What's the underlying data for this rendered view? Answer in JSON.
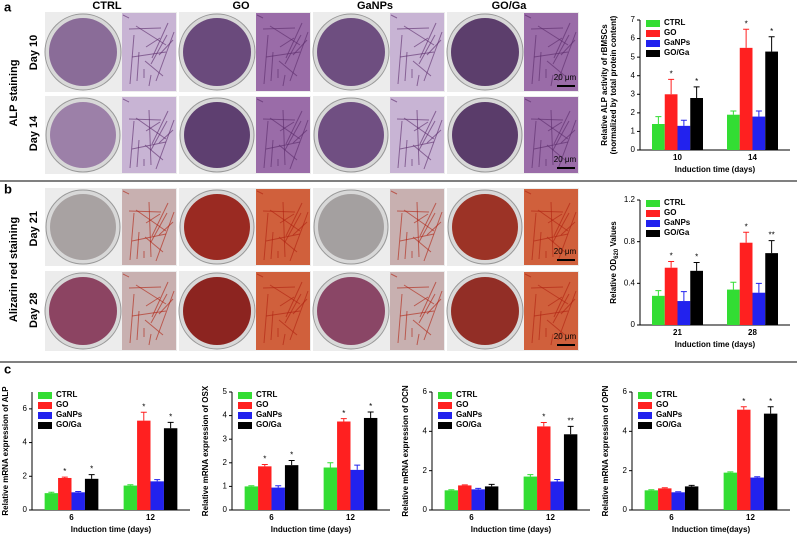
{
  "figure": {
    "panels": [
      "a",
      "b",
      "c"
    ],
    "columns": [
      "CTRL",
      "GO",
      "GaNPs",
      "GO/Ga"
    ],
    "rows_a": {
      "group": "ALP staining",
      "days": [
        "Day 10",
        "Day 14"
      ]
    },
    "rows_b": {
      "group": "Alizarin red staining",
      "days": [
        "Day 21",
        "Day 28"
      ]
    },
    "scale_bar": "20 μm"
  },
  "chart_data": [
    {
      "type": "bar",
      "ylabel": [
        "Relative ALP activity of rBMSCs",
        "(normalized by total protein content)"
      ],
      "xlabel": "Induction time (days)",
      "categories": [
        "10",
        "14"
      ],
      "ylim": [
        0,
        7
      ],
      "yticks": [
        0,
        1,
        2,
        3,
        4,
        5,
        6,
        7
      ],
      "series": [
        {
          "name": "CTRL",
          "color": "#33dd33",
          "values": [
            1.4,
            1.9
          ],
          "errors": [
            0.4,
            0.2
          ],
          "significance": [
            null,
            null
          ]
        },
        {
          "name": "GO",
          "color": "#ff2020",
          "values": [
            3.0,
            5.5
          ],
          "errors": [
            0.8,
            1.0
          ],
          "significance": [
            "*",
            "*"
          ]
        },
        {
          "name": "GaNPs",
          "color": "#2222ee",
          "values": [
            1.3,
            1.8
          ],
          "errors": [
            0.3,
            0.3
          ],
          "significance": [
            null,
            null
          ]
        },
        {
          "name": "GO/Ga",
          "color": "#000000",
          "values": [
            2.8,
            5.3
          ],
          "errors": [
            0.6,
            0.8
          ],
          "significance": [
            "*",
            "*"
          ]
        }
      ]
    },
    {
      "type": "bar",
      "ylabel": [
        "Relative OD"
      ],
      "ylabel_sub": "620",
      "ylabel_after": " Values",
      "xlabel": "Induction time (days)",
      "categories": [
        "21",
        "28"
      ],
      "ylim": [
        0,
        1.2
      ],
      "yticks": [
        0,
        0.4,
        0.8,
        1.2
      ],
      "series": [
        {
          "name": "CTRL",
          "color": "#33dd33",
          "values": [
            0.28,
            0.34
          ],
          "errors": [
            0.05,
            0.07
          ],
          "significance": [
            null,
            null
          ]
        },
        {
          "name": "GO",
          "color": "#ff2020",
          "values": [
            0.55,
            0.79
          ],
          "errors": [
            0.06,
            0.1
          ],
          "significance": [
            "*",
            "*"
          ]
        },
        {
          "name": "GaNPs",
          "color": "#2222ee",
          "values": [
            0.23,
            0.31
          ],
          "errors": [
            0.09,
            0.09
          ],
          "significance": [
            null,
            null
          ]
        },
        {
          "name": "GO/Ga",
          "color": "#000000",
          "values": [
            0.52,
            0.69
          ],
          "errors": [
            0.08,
            0.12
          ],
          "significance": [
            "*",
            "**"
          ]
        }
      ]
    },
    {
      "type": "bar",
      "ylabel": [
        "Relative mRNA expression of ALP"
      ],
      "xlabel": "Induction time (days)",
      "categories": [
        "6",
        "12"
      ],
      "ylim": [
        0,
        7
      ],
      "yticks": [
        0,
        2,
        4,
        6
      ],
      "series": [
        {
          "name": "CTRL",
          "color": "#33dd33",
          "values": [
            1.0,
            1.45
          ],
          "errors": [
            0.05,
            0.05
          ],
          "significance": [
            null,
            null
          ]
        },
        {
          "name": "GO",
          "color": "#ff2020",
          "values": [
            1.9,
            5.3
          ],
          "errors": [
            0.05,
            0.5
          ],
          "significance": [
            "*",
            "*"
          ]
        },
        {
          "name": "GaNPs",
          "color": "#2222ee",
          "values": [
            1.05,
            1.7
          ],
          "errors": [
            0.05,
            0.1
          ],
          "significance": [
            null,
            null
          ]
        },
        {
          "name": "GO/Ga",
          "color": "#000000",
          "values": [
            1.85,
            4.85
          ],
          "errors": [
            0.25,
            0.35
          ],
          "significance": [
            "*",
            "*"
          ]
        }
      ]
    },
    {
      "type": "bar",
      "ylabel": [
        "Relative mRNA expression of OSX"
      ],
      "xlabel": "Induction time (days)",
      "categories": [
        "6",
        "12"
      ],
      "ylim": [
        0,
        5
      ],
      "yticks": [
        0,
        1,
        2,
        3,
        4,
        5
      ],
      "series": [
        {
          "name": "CTRL",
          "color": "#33dd33",
          "values": [
            1.0,
            1.8
          ],
          "errors": [
            0.03,
            0.2
          ],
          "significance": [
            null,
            null
          ]
        },
        {
          "name": "GO",
          "color": "#ff2020",
          "values": [
            1.85,
            3.75
          ],
          "errors": [
            0.08,
            0.12
          ],
          "significance": [
            "*",
            "*"
          ]
        },
        {
          "name": "GaNPs",
          "color": "#2222ee",
          "values": [
            0.95,
            1.7
          ],
          "errors": [
            0.08,
            0.2
          ],
          "significance": [
            null,
            null
          ]
        },
        {
          "name": "GO/Ga",
          "color": "#000000",
          "values": [
            1.9,
            3.9
          ],
          "errors": [
            0.2,
            0.25
          ],
          "significance": [
            "*",
            "*"
          ]
        }
      ]
    },
    {
      "type": "bar",
      "ylabel": [
        "Relative mRNA expression of OCN"
      ],
      "xlabel": "Induction time (days)",
      "categories": [
        "6",
        "12"
      ],
      "ylim": [
        0,
        6
      ],
      "yticks": [
        0,
        2,
        4,
        6
      ],
      "series": [
        {
          "name": "CTRL",
          "color": "#33dd33",
          "values": [
            1.0,
            1.7
          ],
          "errors": [
            0.03,
            0.1
          ],
          "significance": [
            null,
            null
          ]
        },
        {
          "name": "GO",
          "color": "#ff2020",
          "values": [
            1.25,
            4.25
          ],
          "errors": [
            0.03,
            0.2
          ],
          "significance": [
            null,
            "*"
          ]
        },
        {
          "name": "GaNPs",
          "color": "#2222ee",
          "values": [
            1.05,
            1.45
          ],
          "errors": [
            0.05,
            0.1
          ],
          "significance": [
            null,
            null
          ]
        },
        {
          "name": "GO/Ga",
          "color": "#000000",
          "values": [
            1.2,
            3.85
          ],
          "errors": [
            0.1,
            0.4
          ],
          "significance": [
            null,
            "**"
          ]
        }
      ]
    },
    {
      "type": "bar",
      "ylabel": [
        "Relative mRNA expression of OPN"
      ],
      "xlabel": "Induction time(days)",
      "categories": [
        "6",
        "12"
      ],
      "ylim": [
        0,
        6
      ],
      "yticks": [
        0,
        2,
        4,
        6
      ],
      "series": [
        {
          "name": "CTRL",
          "color": "#33dd33",
          "values": [
            1.0,
            1.9
          ],
          "errors": [
            0.03,
            0.04
          ],
          "significance": [
            null,
            null
          ]
        },
        {
          "name": "GO",
          "color": "#ff2020",
          "values": [
            1.1,
            5.1
          ],
          "errors": [
            0.03,
            0.15
          ],
          "significance": [
            null,
            "*"
          ]
        },
        {
          "name": "GaNPs",
          "color": "#2222ee",
          "values": [
            0.9,
            1.65
          ],
          "errors": [
            0.03,
            0.04
          ],
          "significance": [
            null,
            null
          ]
        },
        {
          "name": "GO/Ga",
          "color": "#000000",
          "values": [
            1.2,
            4.9
          ],
          "errors": [
            0.05,
            0.35
          ],
          "significance": [
            null,
            "*"
          ]
        }
      ]
    }
  ]
}
